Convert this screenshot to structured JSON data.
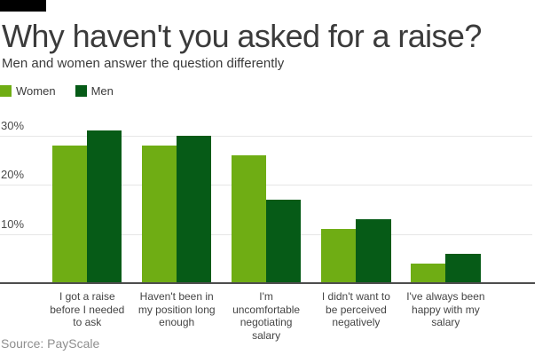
{
  "header": {
    "title": "Why haven't you asked for a raise?",
    "subtitle": "Men and women answer the question differently"
  },
  "legend": {
    "items": [
      {
        "label": "Women",
        "color": "#6FAD14"
      },
      {
        "label": "Men",
        "color": "#065B17"
      }
    ]
  },
  "source": "Source: PayScale",
  "colors": {
    "women": "#6FAD14",
    "men": "#065B17",
    "brand_bar": "#000000",
    "gridline": "#E6E6E6",
    "axis_line": "#4D4D4D",
    "title_text": "#3B3B3B",
    "label_text": "#454545",
    "source_text": "#8F8F8F"
  },
  "chart_data": {
    "type": "bar",
    "title": "Why haven't you asked for a raise?",
    "subtitle": "Men and women answer the question differently",
    "categories": [
      "I got a raise before I needed to ask",
      "Haven't been in my position long enough",
      "I'm uncomfortable negotiating salary",
      "I didn't want to be perceived negatively",
      "I've always been happy with my salary"
    ],
    "category_lines": [
      [
        "I got a raise",
        "before I needed",
        "to ask"
      ],
      [
        "Haven't been in",
        "my position long",
        "enough"
      ],
      [
        "I'm",
        "uncomfortable",
        "negotiating",
        "salary"
      ],
      [
        "I didn't want to",
        "be perceived",
        "negatively"
      ],
      [
        "I've always been",
        "happy with my",
        "salary"
      ]
    ],
    "series": [
      {
        "name": "Women",
        "values": [
          28,
          28,
          26,
          11,
          4
        ]
      },
      {
        "name": "Men",
        "values": [
          31,
          30,
          17,
          13,
          6
        ]
      }
    ],
    "unit": "%",
    "yticks": [
      10,
      20,
      30
    ],
    "ytick_labels": [
      "10%",
      "20%",
      "30%"
    ],
    "ylim": [
      0,
      35
    ],
    "grid": true,
    "legend_position": "top-left",
    "source": "Source: PayScale"
  }
}
